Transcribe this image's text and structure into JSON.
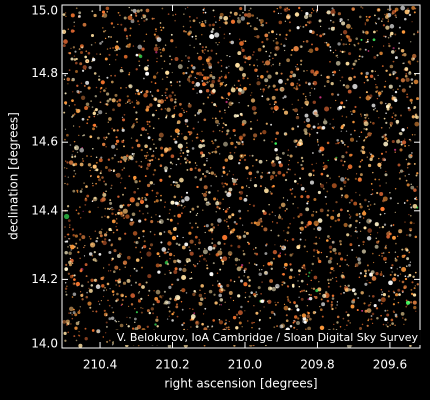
{
  "chart_data": {
    "type": "image",
    "xlabel": "right ascension [degrees]",
    "ylabel": "declination [degrees]",
    "annotation": "V. Belokurov, IoA Cambridge / Sloan Digital Sky Survey",
    "xlim": [
      210.505,
      209.517
    ],
    "ylim": [
      14.0,
      15.0
    ],
    "xticks": [
      210.4,
      210.2,
      {
        "value": 210.0,
        "label": "210.0"
      },
      209.8,
      209.6
    ],
    "yticks": [
      {
        "value": 14.0,
        "label": "14.0"
      },
      14.2,
      14.4,
      14.6,
      14.8,
      {
        "value": 15.0,
        "label": "15.0"
      }
    ]
  }
}
